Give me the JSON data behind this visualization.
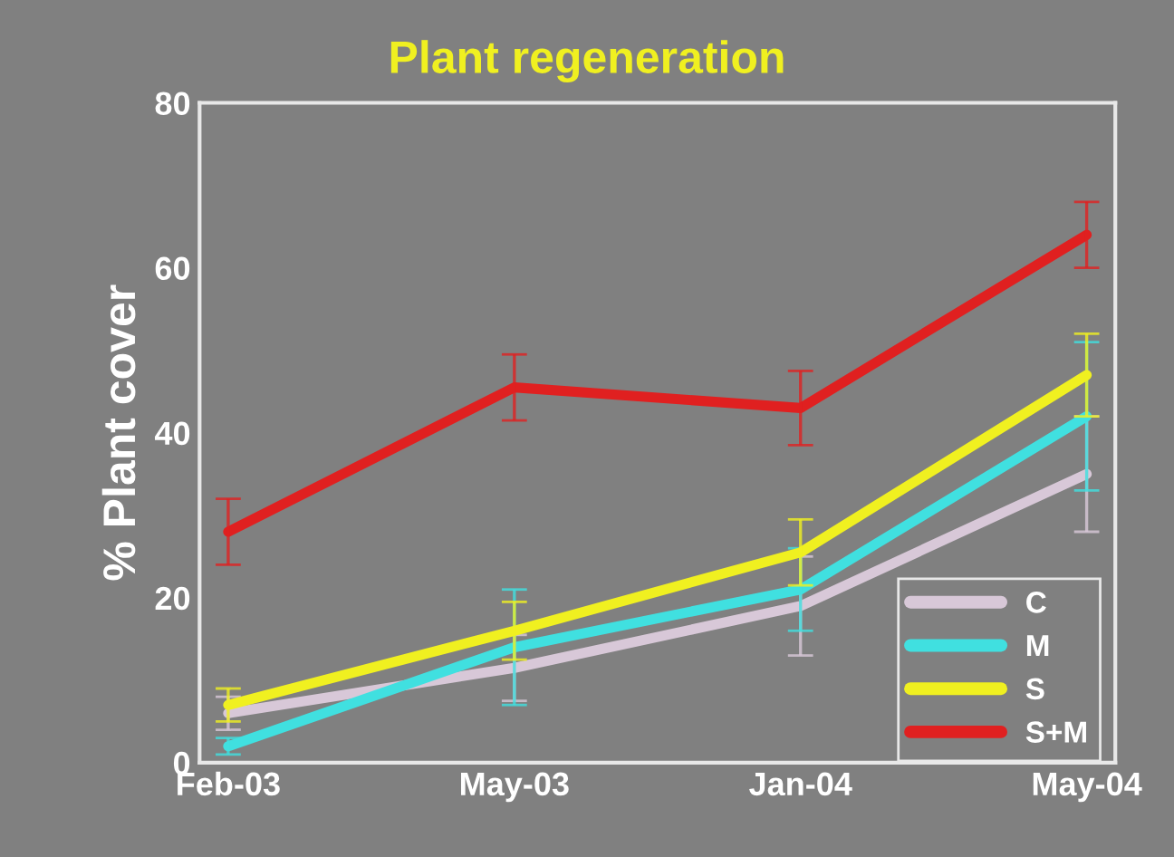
{
  "chart_data": {
    "type": "line",
    "title": "Plant regeneration",
    "ylabel": "% Plant cover",
    "categories": [
      "Feb-03",
      "May-03",
      "Jan-04",
      "May-04"
    ],
    "series": [
      {
        "name": "C",
        "color": "#d8c8d8",
        "values": [
          6,
          11.5,
          19,
          35
        ],
        "errors": [
          2,
          4,
          6,
          7
        ]
      },
      {
        "name": "M",
        "color": "#40e0e0",
        "values": [
          2,
          14,
          21,
          42
        ],
        "errors": [
          1,
          7,
          5,
          9
        ]
      },
      {
        "name": "S",
        "color": "#f0f020",
        "values": [
          7,
          16,
          25.5,
          47
        ],
        "errors": [
          2,
          3.5,
          4,
          5
        ]
      },
      {
        "name": "S+M",
        "color": "#e02020",
        "values": [
          28,
          45.5,
          43,
          64
        ],
        "errors": [
          4,
          4,
          4.5,
          4
        ]
      }
    ],
    "ylim": [
      0,
      80
    ],
    "yticks": [
      0,
      20,
      40,
      60,
      80
    ],
    "grid": false,
    "legend": "bottom right",
    "marker": "none",
    "line_style": "solid"
  }
}
